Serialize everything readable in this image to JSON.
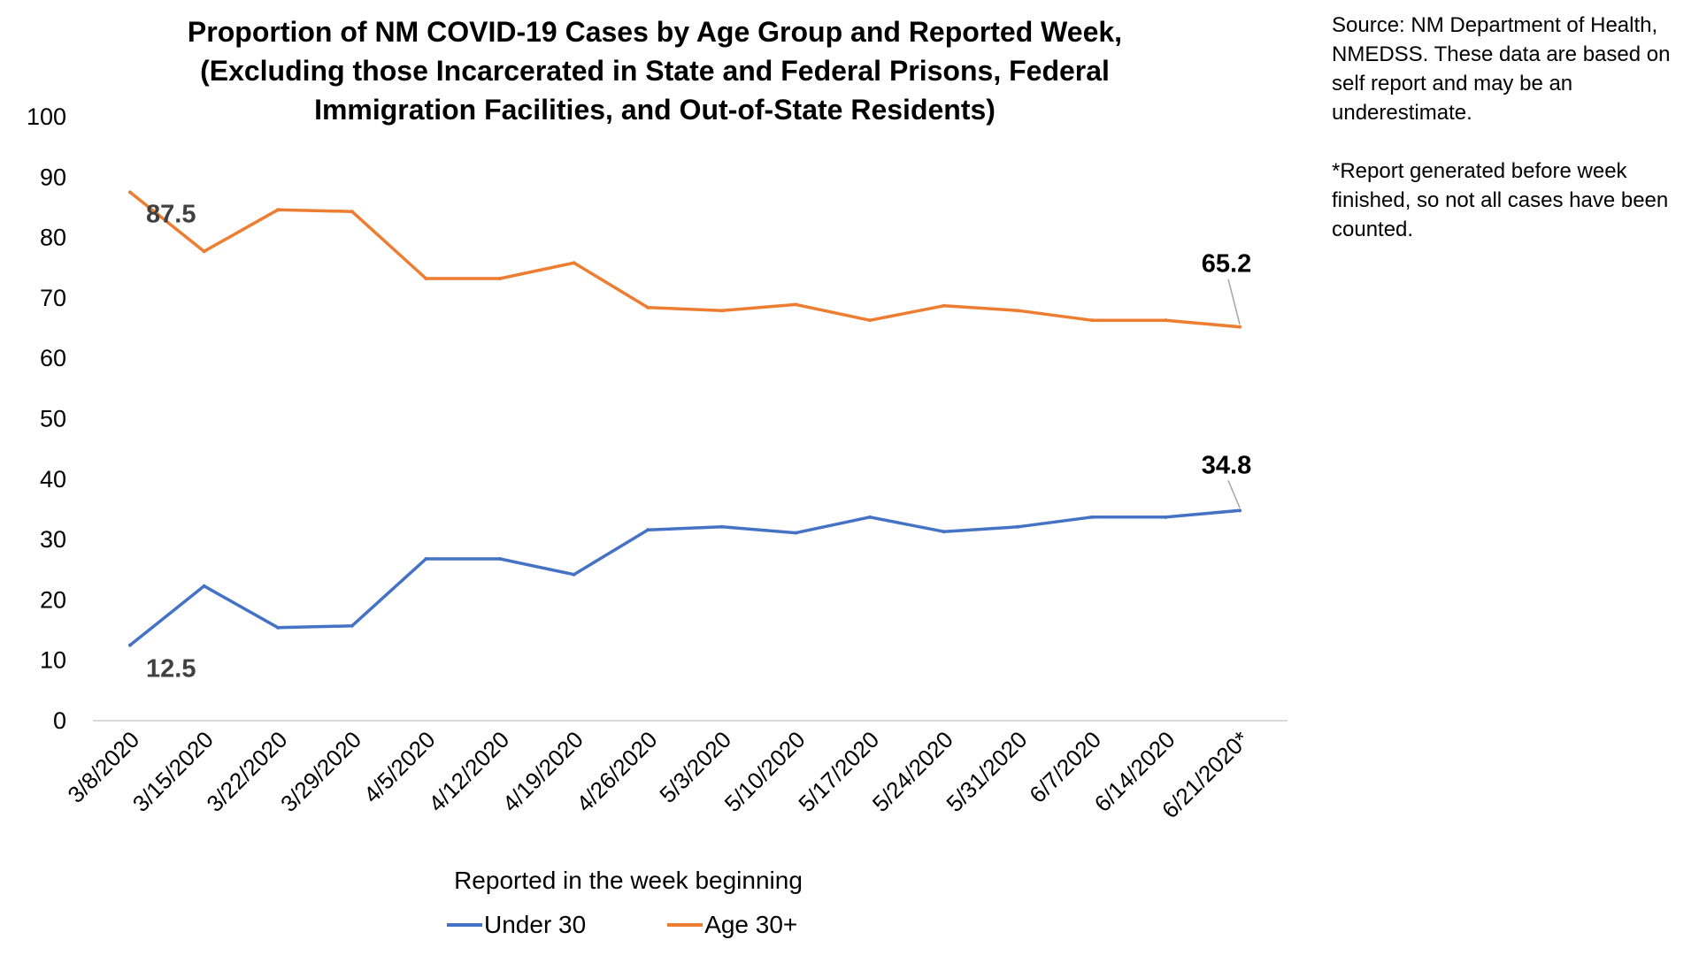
{
  "chart_data": {
    "type": "line",
    "title_lines": [
      "Proportion of NM COVID-19 Cases by Age Group and Reported Week,",
      "(Excluding those Incarcerated in State and Federal Prisons, Federal",
      "Immigration Facilities, and Out-of-State Residents)"
    ],
    "source_note": [
      "Source: NM Department of Health, NMEDSS. These data are based on self report and may be an underestimate.",
      "*Report generated before week finished, so not all cases have been counted."
    ],
    "xlabel": "Reported in the week beginning",
    "ylabel": "",
    "ylim": [
      0,
      100
    ],
    "yticks": [
      0,
      10,
      20,
      30,
      40,
      50,
      60,
      70,
      80,
      90,
      100
    ],
    "grid": false,
    "legend_position": "bottom",
    "categories": [
      "3/8/2020",
      "3/15/2020",
      "3/22/2020",
      "3/29/2020",
      "4/5/2020",
      "4/12/2020",
      "4/19/2020",
      "4/26/2020",
      "5/3/2020",
      "5/10/2020",
      "5/17/2020",
      "5/24/2020",
      "5/31/2020",
      "6/7/2020",
      "6/14/2020",
      "6/21/2020*"
    ],
    "series": [
      {
        "name": "Under 30",
        "color": "#4472C4",
        "values": [
          12.5,
          22.3,
          15.4,
          15.7,
          26.8,
          26.8,
          24.2,
          31.6,
          32.1,
          31.1,
          33.7,
          31.3,
          32.1,
          33.7,
          33.7,
          34.8
        ]
      },
      {
        "name": "Age 30+",
        "color": "#ED7D31",
        "values": [
          87.5,
          77.7,
          84.6,
          84.3,
          73.2,
          73.2,
          75.8,
          68.4,
          67.9,
          68.9,
          66.3,
          68.7,
          67.9,
          66.3,
          66.3,
          65.2
        ]
      }
    ],
    "annotations": [
      {
        "series": 1,
        "index": 0,
        "text": "87.5"
      },
      {
        "series": 1,
        "index": 15,
        "text": "65.2"
      },
      {
        "series": 0,
        "index": 0,
        "text": "12.5"
      },
      {
        "series": 0,
        "index": 15,
        "text": "34.8"
      }
    ]
  }
}
